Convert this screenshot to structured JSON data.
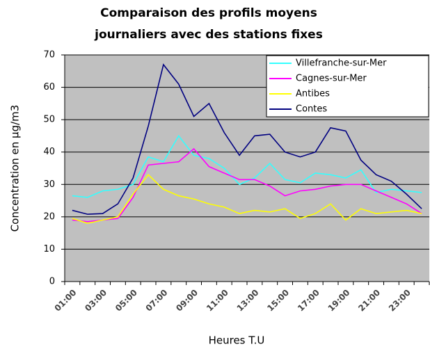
{
  "chart_data": {
    "type": "line",
    "title": "Comparaison des profils moyens journaliers avec des stations fixes",
    "x_label": "Heures T.U",
    "y_label": "Concentration en µg/m3",
    "categories": [
      "01:00",
      null,
      "03:00",
      null,
      "05:00",
      null,
      "07:00",
      null,
      "09:00",
      null,
      "11:00",
      null,
      "13:00",
      null,
      "15:00",
      null,
      "17:00",
      null,
      "19:00",
      null,
      "21:00",
      null,
      "23:00",
      null
    ],
    "series": [
      {
        "name": "Villefranche-sur-Mer",
        "color": "#33ffff",
        "values": [
          26.5,
          26,
          28,
          28.5,
          30,
          38.5,
          37,
          45,
          39,
          38,
          35,
          30,
          32,
          36.5,
          31.5,
          30.5,
          33.5,
          33,
          32,
          34.5,
          27.5,
          28.5,
          28,
          27.5
        ]
      },
      {
        "name": "Cagnes-sur-Mer",
        "color": "#ff00ff",
        "values": [
          19,
          18.5,
          19,
          19.5,
          26,
          36,
          36.5,
          37,
          41,
          35.5,
          33.5,
          31.5,
          31.5,
          29.5,
          26.5,
          28,
          28.5,
          29.5,
          30,
          30,
          28,
          26,
          24,
          21
        ]
      },
      {
        "name": "Antibes",
        "color": "#ffff00",
        "values": [
          19.5,
          18,
          19,
          20,
          27,
          33,
          28.5,
          26.5,
          25.5,
          24,
          23,
          21,
          22,
          21.5,
          22.5,
          19.5,
          21,
          24,
          19,
          22.5,
          21,
          21.5,
          22,
          21
        ]
      },
      {
        "name": "Contes",
        "color": "#000080",
        "values": [
          22,
          20.8,
          21,
          24,
          32,
          48,
          67,
          61,
          51,
          55,
          46,
          39,
          45,
          45.5,
          40,
          38.5,
          40,
          47.5,
          46.5,
          37.5,
          33,
          31,
          27,
          22.5
        ]
      }
    ],
    "ylim": [
      0,
      70
    ],
    "yticks": [
      0,
      10,
      20,
      30,
      40,
      50,
      60,
      70
    ],
    "grid": true,
    "legend": "top-right"
  }
}
